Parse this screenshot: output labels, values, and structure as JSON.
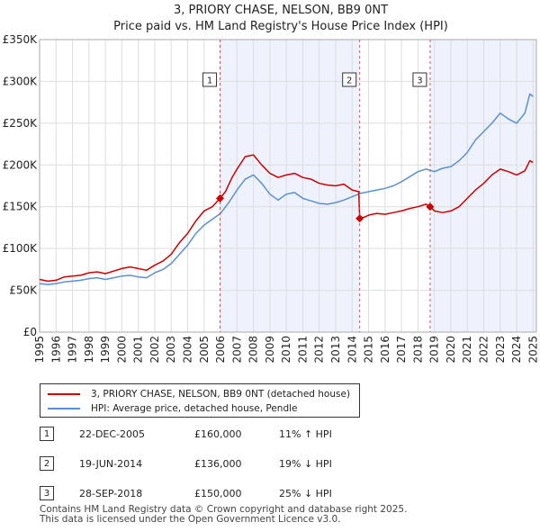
{
  "chart_data": {
    "type": "line",
    "title": "3, PRIORY CHASE, NELSON, BB9 0NT",
    "subtitle": "Price paid vs. HM Land Registry's House Price Index (HPI)",
    "xlim": [
      1995.0,
      2025.2
    ],
    "ylim": [
      0,
      350000
    ],
    "x_ticks": [
      1995,
      1996,
      1997,
      1998,
      1999,
      2000,
      2001,
      2002,
      2003,
      2004,
      2005,
      2006,
      2007,
      2008,
      2009,
      2010,
      2011,
      2012,
      2013,
      2014,
      2015,
      2016,
      2017,
      2018,
      2019,
      2020,
      2021,
      2022,
      2023,
      2024,
      2025
    ],
    "y_ticks": [
      {
        "value": 0,
        "label": "£0"
      },
      {
        "value": 50000,
        "label": "£50K"
      },
      {
        "value": 100000,
        "label": "£100K"
      },
      {
        "value": 150000,
        "label": "£150K"
      },
      {
        "value": 200000,
        "label": "£200K"
      },
      {
        "value": 250000,
        "label": "£250K"
      },
      {
        "value": 300000,
        "label": "£300K"
      },
      {
        "value": 350000,
        "label": "£350K"
      }
    ],
    "grid": true,
    "series": [
      {
        "name": "3, PRIORY CHASE, NELSON, BB9 0NT (detached house)",
        "color": "#cc0000",
        "points": [
          [
            1995.0,
            63000
          ],
          [
            1995.5,
            61000
          ],
          [
            1996.0,
            62000
          ],
          [
            1996.5,
            66000
          ],
          [
            1997.0,
            67000
          ],
          [
            1997.5,
            68000
          ],
          [
            1998.0,
            71000
          ],
          [
            1998.5,
            72000
          ],
          [
            1999.0,
            70000
          ],
          [
            1999.5,
            73000
          ],
          [
            2000.0,
            76000
          ],
          [
            2000.5,
            78000
          ],
          [
            2001.0,
            76000
          ],
          [
            2001.5,
            74000
          ],
          [
            2002.0,
            80000
          ],
          [
            2002.5,
            85000
          ],
          [
            2003.0,
            93000
          ],
          [
            2003.5,
            107000
          ],
          [
            2004.0,
            118000
          ],
          [
            2004.5,
            133000
          ],
          [
            2005.0,
            145000
          ],
          [
            2005.5,
            150000
          ],
          [
            2005.97,
            160000
          ],
          [
            2006.3,
            168000
          ],
          [
            2006.7,
            185000
          ],
          [
            2007.0,
            195000
          ],
          [
            2007.5,
            210000
          ],
          [
            2008.0,
            212000
          ],
          [
            2008.5,
            200000
          ],
          [
            2009.0,
            190000
          ],
          [
            2009.5,
            185000
          ],
          [
            2010.0,
            188000
          ],
          [
            2010.5,
            190000
          ],
          [
            2011.0,
            185000
          ],
          [
            2011.5,
            183000
          ],
          [
            2012.0,
            178000
          ],
          [
            2012.5,
            176000
          ],
          [
            2013.0,
            175000
          ],
          [
            2013.5,
            177000
          ],
          [
            2014.0,
            170000
          ],
          [
            2014.4,
            168000
          ],
          [
            2014.46,
            136000
          ],
          [
            2014.8,
            138000
          ],
          [
            2015.0,
            140000
          ],
          [
            2015.5,
            142000
          ],
          [
            2016.0,
            141000
          ],
          [
            2016.5,
            143000
          ],
          [
            2017.0,
            145000
          ],
          [
            2017.5,
            148000
          ],
          [
            2018.0,
            150000
          ],
          [
            2018.5,
            153000
          ],
          [
            2018.74,
            150000
          ],
          [
            2019.0,
            145000
          ],
          [
            2019.5,
            143000
          ],
          [
            2020.0,
            145000
          ],
          [
            2020.5,
            150000
          ],
          [
            2021.0,
            160000
          ],
          [
            2021.5,
            170000
          ],
          [
            2022.0,
            178000
          ],
          [
            2022.5,
            188000
          ],
          [
            2023.0,
            195000
          ],
          [
            2023.5,
            192000
          ],
          [
            2024.0,
            188000
          ],
          [
            2024.5,
            193000
          ],
          [
            2024.8,
            205000
          ],
          [
            2025.0,
            203000
          ]
        ]
      },
      {
        "name": "HPI: Average price, detached house, Pendle",
        "color": "#5b8fd4",
        "points": [
          [
            1995.0,
            58000
          ],
          [
            1995.5,
            57000
          ],
          [
            1996.0,
            58000
          ],
          [
            1996.5,
            60000
          ],
          [
            1997.0,
            61000
          ],
          [
            1997.5,
            62000
          ],
          [
            1998.0,
            64000
          ],
          [
            1998.5,
            65000
          ],
          [
            1999.0,
            63000
          ],
          [
            1999.5,
            65000
          ],
          [
            2000.0,
            67000
          ],
          [
            2000.5,
            68000
          ],
          [
            2001.0,
            66000
          ],
          [
            2001.5,
            65000
          ],
          [
            2002.0,
            71000
          ],
          [
            2002.5,
            75000
          ],
          [
            2003.0,
            82000
          ],
          [
            2003.5,
            93000
          ],
          [
            2004.0,
            104000
          ],
          [
            2004.5,
            118000
          ],
          [
            2005.0,
            128000
          ],
          [
            2005.5,
            135000
          ],
          [
            2006.0,
            142000
          ],
          [
            2006.5,
            155000
          ],
          [
            2007.0,
            170000
          ],
          [
            2007.5,
            183000
          ],
          [
            2008.0,
            188000
          ],
          [
            2008.5,
            178000
          ],
          [
            2009.0,
            165000
          ],
          [
            2009.5,
            158000
          ],
          [
            2010.0,
            165000
          ],
          [
            2010.5,
            167000
          ],
          [
            2011.0,
            160000
          ],
          [
            2011.5,
            157000
          ],
          [
            2012.0,
            154000
          ],
          [
            2012.5,
            153000
          ],
          [
            2013.0,
            155000
          ],
          [
            2013.5,
            158000
          ],
          [
            2014.0,
            162000
          ],
          [
            2014.5,
            166000
          ],
          [
            2015.0,
            168000
          ],
          [
            2015.5,
            170000
          ],
          [
            2016.0,
            172000
          ],
          [
            2016.5,
            175000
          ],
          [
            2017.0,
            180000
          ],
          [
            2017.5,
            186000
          ],
          [
            2018.0,
            192000
          ],
          [
            2018.5,
            195000
          ],
          [
            2019.0,
            192000
          ],
          [
            2019.5,
            196000
          ],
          [
            2020.0,
            198000
          ],
          [
            2020.5,
            205000
          ],
          [
            2021.0,
            215000
          ],
          [
            2021.5,
            230000
          ],
          [
            2022.0,
            240000
          ],
          [
            2022.5,
            250000
          ],
          [
            2023.0,
            262000
          ],
          [
            2023.5,
            255000
          ],
          [
            2024.0,
            250000
          ],
          [
            2024.5,
            262000
          ],
          [
            2024.8,
            285000
          ],
          [
            2025.0,
            282000
          ]
        ]
      }
    ],
    "shaded_regions": [
      [
        2005.97,
        2014.46
      ],
      [
        2018.74,
        2025.2
      ]
    ],
    "transactions": [
      {
        "num": "1",
        "x": 2005.97,
        "price": 160000,
        "date": "22-DEC-2005",
        "price_label": "£160,000",
        "hpi": "11% ↑ HPI"
      },
      {
        "num": "2",
        "x": 2014.46,
        "price": 136000,
        "date": "19-JUN-2014",
        "price_label": "£136,000",
        "hpi": "19% ↓ HPI"
      },
      {
        "num": "3",
        "x": 2018.74,
        "price": 150000,
        "date": "28-SEP-2018",
        "price_label": "£150,000",
        "hpi": "25% ↓ HPI"
      }
    ]
  },
  "legend": {
    "property": "3, PRIORY CHASE, NELSON, BB9 0NT (detached house)",
    "hpi": "HPI: Average price, detached house, Pendle",
    "property_color": "#cc0000",
    "hpi_color": "#5b8fd4"
  },
  "footer": {
    "line1": "Contains HM Land Registry data © Crown copyright and database right 2025.",
    "line2": "This data is licensed under the Open Government Licence v3.0."
  },
  "colors": {
    "shade": "#eef2fc",
    "grid": "#dddddd",
    "marker_line": "#e05050"
  }
}
